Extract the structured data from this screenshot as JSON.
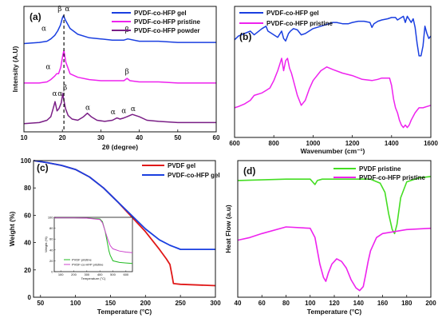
{
  "chart_data": [
    {
      "panel": "(a)",
      "type": "line",
      "xlabel": "2θ (degree)",
      "ylabel": "Intensity (A.U)",
      "xlim": [
        10,
        60
      ],
      "xticks": [
        10,
        20,
        30,
        40,
        50,
        60
      ],
      "legend_position": "top-right",
      "series": [
        {
          "name": "PVDF-co-HFP gel",
          "color": "#1a3fe0",
          "x": [
            10,
            14,
            16,
            17,
            18,
            18.8,
            19.5,
            20,
            20.3,
            20.8,
            22,
            24,
            27,
            30,
            33,
            36,
            37,
            40,
            45,
            50,
            55,
            60
          ],
          "y": [
            0.76,
            0.77,
            0.78,
            0.8,
            0.83,
            0.87,
            0.92,
            0.98,
            1.0,
            0.96,
            0.89,
            0.84,
            0.81,
            0.8,
            0.79,
            0.79,
            0.8,
            0.78,
            0.78,
            0.77,
            0.77,
            0.77
          ]
        },
        {
          "name": "PVDF-co-HFP pristine",
          "color": "#ee22ee",
          "x": [
            10,
            14,
            16,
            17,
            18,
            18.5,
            19,
            19.6,
            20.1,
            20.4,
            20.9,
            22,
            24,
            27,
            30,
            33,
            36,
            36.8,
            37.6,
            40,
            45,
            50,
            55,
            60
          ],
          "y": [
            0.42,
            0.42,
            0.43,
            0.45,
            0.48,
            0.5,
            0.5,
            0.56,
            0.66,
            0.7,
            0.6,
            0.5,
            0.47,
            0.45,
            0.44,
            0.44,
            0.44,
            0.46,
            0.44,
            0.43,
            0.43,
            0.42,
            0.42,
            0.42
          ]
        },
        {
          "name": "PVDF-co-HFP powder",
          "color": "#7a1f86",
          "x": [
            10,
            14,
            16,
            17,
            17.6,
            18.1,
            18.6,
            19.1,
            19.7,
            20.1,
            20.4,
            20.8,
            21.5,
            22.5,
            24,
            25.5,
            26.5,
            27.5,
            29,
            31,
            33,
            34.2,
            35,
            36,
            36.8,
            38.2,
            40,
            42,
            45,
            50,
            55,
            60
          ],
          "y": [
            0.07,
            0.08,
            0.1,
            0.13,
            0.2,
            0.26,
            0.18,
            0.2,
            0.25,
            0.33,
            0.27,
            0.2,
            0.14,
            0.11,
            0.1,
            0.13,
            0.16,
            0.13,
            0.1,
            0.09,
            0.1,
            0.12,
            0.11,
            0.12,
            0.13,
            0.15,
            0.13,
            0.1,
            0.09,
            0.08,
            0.08,
            0.08
          ]
        }
      ],
      "annotations": [
        {
          "text": "α",
          "x": 15.2,
          "y": 0.87
        },
        {
          "text": "β",
          "x": 19.3,
          "y": 1.04
        },
        {
          "text": "α",
          "x": 21.3,
          "y": 1.04
        },
        {
          "text": "β",
          "x": 36.8,
          "y": 0.86
        },
        {
          "text": "α",
          "x": 16.3,
          "y": 0.54
        },
        {
          "text": "β",
          "x": 36.8,
          "y": 0.5
        },
        {
          "text": "α",
          "x": 18.0,
          "y": 0.31
        },
        {
          "text": "α",
          "x": 19.4,
          "y": 0.31
        },
        {
          "text": "β",
          "x": 20.7,
          "y": 0.36
        },
        {
          "text": "α",
          "x": 26.6,
          "y": 0.19
        },
        {
          "text": "α",
          "x": 33.2,
          "y": 0.15
        },
        {
          "text": "α",
          "x": 36.0,
          "y": 0.16
        },
        {
          "text": "α",
          "x": 38.4,
          "y": 0.18
        }
      ]
    },
    {
      "panel": "(b)",
      "type": "line",
      "xlabel": "Wavenumber (cm⁻¹)",
      "xlim": [
        600,
        1600
      ],
      "xticks": [
        600,
        800,
        1000,
        1200,
        1400,
        1600
      ],
      "legend_position": "top-left",
      "series": [
        {
          "name": "PVDF-co-HFP gel",
          "color": "#1a3fe0",
          "x": [
            600,
            620,
            650,
            680,
            700,
            740,
            760,
            770,
            790,
            800,
            820,
            840,
            850,
            860,
            875,
            885,
            900,
            920,
            940,
            960,
            980,
            1000,
            1040,
            1080,
            1100,
            1120,
            1150,
            1180,
            1200,
            1230,
            1260,
            1290,
            1300,
            1310,
            1330,
            1350,
            1380,
            1400,
            1420,
            1430,
            1440,
            1460,
            1470,
            1480,
            1500,
            1510,
            1520,
            1530,
            1540,
            1550,
            1560,
            1570,
            1580,
            1590,
            1600
          ],
          "y": [
            0.75,
            0.78,
            0.8,
            0.82,
            0.79,
            0.84,
            0.86,
            0.82,
            0.8,
            0.79,
            0.77,
            0.82,
            0.76,
            0.74,
            0.8,
            0.82,
            0.84,
            0.83,
            0.79,
            0.8,
            0.82,
            0.84,
            0.86,
            0.88,
            0.89,
            0.89,
            0.88,
            0.88,
            0.89,
            0.9,
            0.9,
            0.89,
            0.85,
            0.88,
            0.9,
            0.91,
            0.92,
            0.93,
            0.93,
            0.91,
            0.92,
            0.94,
            0.89,
            0.94,
            0.89,
            0.92,
            0.85,
            0.72,
            0.62,
            0.62,
            0.7,
            0.86,
            0.8,
            0.76,
            0.78
          ]
        },
        {
          "name": "PVDF-co-HFP pristine",
          "color": "#ee22ee",
          "x": [
            600,
            620,
            650,
            680,
            700,
            740,
            760,
            780,
            800,
            820,
            830,
            840,
            850,
            860,
            870,
            880,
            890,
            900,
            920,
            940,
            960,
            980,
            1000,
            1040,
            1070,
            1100,
            1150,
            1200,
            1250,
            1300,
            1330,
            1350,
            1370,
            1390,
            1400,
            1410,
            1420,
            1430,
            1440,
            1450,
            1460,
            1470,
            1480,
            1490,
            1500,
            1520,
            1540,
            1560,
            1580,
            1600
          ],
          "y": [
            0.2,
            0.21,
            0.23,
            0.26,
            0.3,
            0.32,
            0.34,
            0.36,
            0.42,
            0.5,
            0.55,
            0.6,
            0.5,
            0.58,
            0.6,
            0.52,
            0.48,
            0.42,
            0.3,
            0.22,
            0.26,
            0.35,
            0.42,
            0.5,
            0.53,
            0.51,
            0.48,
            0.46,
            0.43,
            0.42,
            0.43,
            0.44,
            0.44,
            0.44,
            0.38,
            0.27,
            0.2,
            0.16,
            0.1,
            0.06,
            0.04,
            0.06,
            0.04,
            0.06,
            0.1,
            0.16,
            0.2,
            0.2,
            0.21,
            0.22
          ]
        }
      ]
    },
    {
      "panel": "(c)",
      "type": "line",
      "xlabel": "Temperature (°C)",
      "ylabel": "Weight (%)",
      "xlim": [
        40,
        300
      ],
      "ylim": [
        0,
        100
      ],
      "xticks": [
        50,
        100,
        150,
        200,
        250,
        300
      ],
      "yticks": [
        0,
        20,
        40,
        60,
        80,
        100
      ],
      "legend_position": "top-right",
      "series": [
        {
          "name": "PVDF gel",
          "color": "#e01818",
          "x": [
            40,
            60,
            80,
            100,
            120,
            140,
            160,
            180,
            200,
            220,
            230,
            235,
            238,
            240,
            250,
            300
          ],
          "y": [
            100,
            98.5,
            96.5,
            93.5,
            88,
            80,
            70,
            59,
            48,
            35,
            28,
            24,
            16,
            10,
            9.5,
            8.5
          ]
        },
        {
          "name": "PVDF-co-HFP gel",
          "color": "#1a3fe0",
          "x": [
            40,
            60,
            80,
            100,
            120,
            140,
            160,
            180,
            200,
            220,
            235,
            240,
            245,
            250,
            300
          ],
          "y": [
            100,
            98.5,
            96.5,
            93.5,
            88,
            80,
            70,
            60,
            50,
            42,
            38,
            37,
            36,
            35,
            35
          ]
        }
      ],
      "inset": {
        "xlabel": "Temperature (°C)",
        "ylabel": "Weight (%)",
        "xlim": [
          50,
          650
        ],
        "ylim": [
          0,
          100
        ],
        "xticks": [
          100,
          200,
          300,
          400,
          500,
          600
        ],
        "yticks": [
          0,
          20,
          40,
          60,
          80,
          100
        ],
        "series": [
          {
            "name": "PVDF pristine",
            "color": "#22bb22",
            "x": [
              50,
              100,
              200,
              300,
              400,
              420,
              440,
              460,
              470,
              480,
              490,
              500,
              550,
              600,
              650
            ],
            "y": [
              99,
              99,
              99,
              98.5,
              97,
              92,
              75,
              50,
              38,
              30,
              25,
              20,
              17,
              16,
              15
            ]
          },
          {
            "name": "PVDF-co-HFP pristine",
            "color": "#cc44cc",
            "x": [
              50,
              100,
              200,
              300,
              400,
              420,
              440,
              460,
              480,
              500,
              550,
              600,
              650
            ],
            "y": [
              99,
              99,
              99,
              98.5,
              96,
              90,
              75,
              60,
              48,
              42,
              38,
              36,
              35
            ]
          }
        ]
      }
    },
    {
      "panel": "(d)",
      "type": "line",
      "xlabel": "Temperature (°C)",
      "ylabel": "Heat Flow (a.u)",
      "xlim": [
        40,
        200
      ],
      "xticks": [
        40,
        60,
        80,
        100,
        120,
        140,
        160,
        180,
        200
      ],
      "legend_position": "top-right",
      "series": [
        {
          "name": "PVDF pristine",
          "color": "#44dd22",
          "x": [
            40,
            60,
            80,
            100,
            102,
            104,
            106,
            110,
            130,
            150,
            158,
            162,
            165,
            168,
            170,
            172,
            175,
            180,
            190,
            200
          ],
          "y": [
            0.83,
            0.835,
            0.84,
            0.84,
            0.82,
            0.8,
            0.83,
            0.84,
            0.84,
            0.84,
            0.81,
            0.74,
            0.58,
            0.46,
            0.43,
            0.5,
            0.7,
            0.82,
            0.85,
            0.86
          ]
        },
        {
          "name": "PVDF-co-HFP pristine",
          "color": "#ee22ee",
          "x": [
            40,
            50,
            60,
            80,
            100,
            104,
            108,
            111,
            113,
            115,
            118,
            122,
            126,
            130,
            134,
            138,
            141,
            144,
            146,
            148,
            150,
            155,
            160,
            180,
            200
          ],
          "y": [
            0.38,
            0.4,
            0.43,
            0.48,
            0.47,
            0.4,
            0.2,
            0.1,
            0.07,
            0.13,
            0.2,
            0.24,
            0.22,
            0.17,
            0.08,
            0.02,
            0.0,
            0.03,
            0.12,
            0.22,
            0.3,
            0.4,
            0.43,
            0.46,
            0.47
          ]
        }
      ]
    }
  ]
}
